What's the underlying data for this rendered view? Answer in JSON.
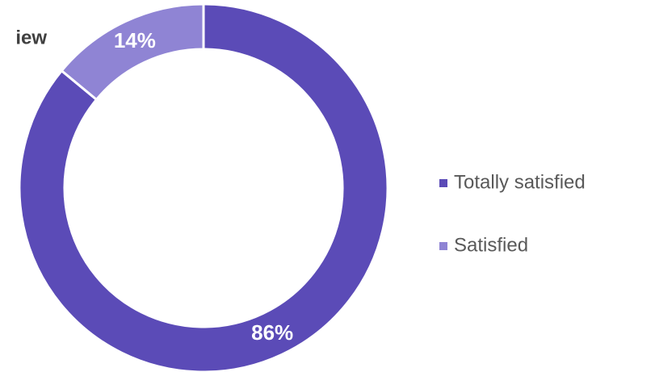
{
  "chart_data": {
    "type": "donut",
    "title": "iew",
    "categories": [
      "Totally satisfied",
      "Satisfied"
    ],
    "values": [
      86,
      14
    ],
    "value_labels": [
      "86%",
      "14%"
    ],
    "colors": [
      "#5b4bb7",
      "#8f84d4"
    ],
    "legend": "right"
  }
}
